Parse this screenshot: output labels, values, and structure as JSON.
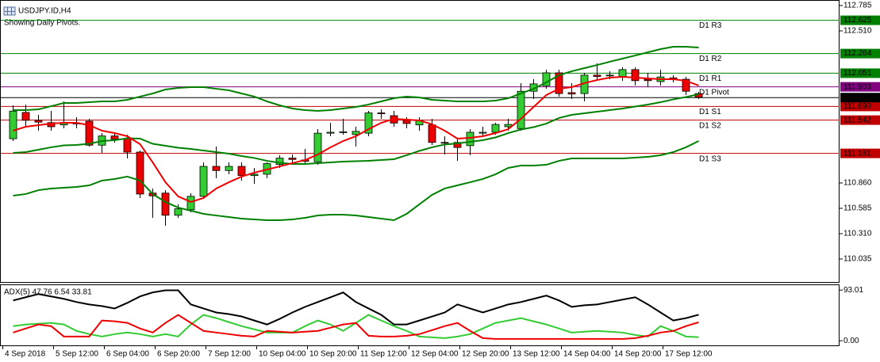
{
  "chart_data": {
    "type": "candlestick",
    "title": "USDJPY.ID,H4",
    "subtitle": "Showing Daily Pivots.",
    "categories": [
      "4 Sep 2018",
      null,
      null,
      null,
      "5 Sep 12:00",
      null,
      null,
      null,
      "6 Sep 04:00",
      null,
      null,
      null,
      "6 Sep 20:00",
      null,
      null,
      null,
      "7 Sep 12:00",
      null,
      null,
      null,
      "10 Sep 04:00",
      null,
      null,
      null,
      "10 Sep 20:00",
      null,
      null,
      null,
      "11 Sep 12:00",
      null,
      null,
      null,
      "12 Sep 04:00",
      null,
      null,
      null,
      "12 Sep 20:00",
      null,
      null,
      null,
      "13 Sep 12:00",
      null,
      null,
      null,
      "14 Sep 04:00",
      null,
      null,
      null,
      "14 Sep 20:00",
      null,
      null,
      null,
      "17 Sep 12:00",
      null,
      null
    ],
    "open": [
      111.34,
      111.625,
      111.54,
      111.515,
      111.49,
      111.51,
      111.53,
      111.27,
      111.37,
      111.34,
      111.195,
      110.75,
      110.75,
      110.51,
      110.57,
      110.715,
      111.04,
      110.995,
      111.04,
      110.94,
      110.955,
      111.06,
      111.13,
      111.11,
      111.09,
      111.4,
      111.41,
      111.385,
      111.4,
      111.62,
      111.59,
      111.54,
      111.49,
      111.49,
      111.3,
      111.3,
      111.265,
      111.4,
      111.41,
      111.47,
      111.45,
      111.855,
      111.915,
      112.055,
      111.84,
      111.83,
      112.03,
      112.025,
      112.015,
      112.09,
      111.985,
      111.96,
      112.0,
      111.985,
      111.83
    ],
    "high": [
      111.702,
      111.711,
      111.599,
      111.642,
      111.745,
      111.573,
      111.556,
      111.401,
      111.401,
      111.384,
      111.212,
      110.8,
      110.782,
      110.628,
      110.748,
      111.083,
      111.255,
      111.083,
      111.083,
      111.023,
      111.083,
      111.161,
      111.169,
      111.229,
      111.444,
      111.513,
      111.556,
      111.47,
      111.642,
      111.659,
      111.642,
      111.573,
      111.573,
      111.556,
      111.367,
      111.341,
      111.444,
      111.47,
      111.513,
      111.556,
      111.943,
      111.986,
      112.089,
      112.089,
      111.943,
      112.054,
      112.158,
      112.072,
      112.115,
      112.115,
      112.054,
      112.089,
      112.029,
      112.011,
      111.848
    ],
    "low": [
      111.315,
      111.47,
      111.427,
      111.427,
      111.453,
      111.453,
      111.255,
      111.186,
      111.298,
      111.126,
      110.697,
      110.482,
      110.396,
      110.482,
      110.542,
      110.697,
      110.911,
      110.954,
      110.886,
      110.851,
      110.911,
      111.023,
      111.075,
      111.057,
      111.057,
      111.367,
      111.384,
      111.255,
      111.367,
      111.556,
      111.47,
      111.453,
      111.427,
      111.272,
      111.169,
      111.1,
      111.161,
      111.367,
      111.384,
      111.427,
      111.427,
      111.771,
      111.882,
      111.797,
      111.771,
      111.745,
      111.986,
      111.986,
      111.968,
      111.917,
      111.9,
      111.917,
      111.951,
      111.814,
      111.771
    ],
    "close": [
      111.64,
      111.54,
      111.52,
      111.47,
      111.515,
      111.5,
      111.27,
      111.37,
      111.335,
      111.195,
      110.74,
      110.72,
      110.51,
      110.58,
      110.715,
      111.04,
      110.995,
      111.04,
      110.94,
      110.955,
      111.07,
      111.13,
      111.115,
      111.095,
      111.4,
      111.41,
      111.415,
      111.42,
      111.62,
      111.615,
      111.51,
      111.505,
      111.54,
      111.3,
      111.295,
      111.245,
      111.41,
      111.41,
      111.495,
      111.495,
      111.855,
      111.935,
      112.055,
      111.83,
      111.825,
      112.03,
      112.015,
      112.03,
      112.09,
      111.97,
      111.97,
      112.01,
      111.985,
      111.855,
      111.79
    ],
    "up_color": "#33cc33",
    "down_color": "#ee0000",
    "lines": [
      {
        "color": "#008000",
        "values": [
          111.65,
          111.65,
          111.659,
          111.693,
          111.728,
          111.728,
          111.736,
          111.745,
          111.745,
          111.762,
          111.797,
          111.831,
          111.874,
          111.891,
          111.9,
          111.9,
          111.882,
          111.865,
          111.831,
          111.797,
          111.745,
          111.702,
          111.668,
          111.65,
          111.642,
          111.65,
          111.668,
          111.685,
          111.711,
          111.745,
          111.779,
          111.797,
          111.788,
          111.762,
          111.754,
          111.745,
          111.745,
          111.745,
          111.754,
          111.779,
          111.831,
          111.882,
          111.951,
          112.029,
          112.072,
          112.106,
          112.14,
          112.175,
          112.209,
          112.243,
          112.278,
          112.312,
          112.338,
          112.338,
          112.329
        ]
      },
      {
        "color": "#008000",
        "values": [
          111.186,
          111.195,
          111.221,
          111.247,
          111.268,
          111.272,
          111.285,
          111.315,
          111.324,
          111.345,
          111.341,
          111.285,
          111.264,
          111.242,
          111.229,
          111.212,
          111.195,
          111.178,
          111.152,
          111.131,
          111.1,
          111.079,
          111.066,
          111.066,
          111.075,
          111.083,
          111.092,
          111.096,
          111.1,
          111.109,
          111.118,
          111.161,
          111.208,
          111.247,
          111.277,
          111.29,
          111.307,
          111.324,
          111.354,
          111.401,
          111.44,
          111.466,
          111.504,
          111.565,
          111.599,
          111.616,
          111.633,
          111.65,
          111.668,
          111.689,
          111.711,
          111.736,
          111.767,
          111.792,
          111.822
        ]
      },
      {
        "color": "#008000",
        "values": [
          110.722,
          110.74,
          110.782,
          110.8,
          110.808,
          110.817,
          110.834,
          110.886,
          110.903,
          110.929,
          110.886,
          110.74,
          110.654,
          110.593,
          110.559,
          110.525,
          110.507,
          110.49,
          110.473,
          110.464,
          110.456,
          110.456,
          110.464,
          110.482,
          110.507,
          110.516,
          110.516,
          110.507,
          110.49,
          110.473,
          110.456,
          110.525,
          110.628,
          110.731,
          110.8,
          110.834,
          110.868,
          110.903,
          110.954,
          111.023,
          111.049,
          111.049,
          111.057,
          111.1,
          111.126,
          111.126,
          111.126,
          111.126,
          111.126,
          111.135,
          111.143,
          111.161,
          111.195,
          111.247,
          111.315
        ]
      },
      {
        "color": "#ee0000",
        "values": [
          111.427,
          111.47,
          111.487,
          111.504,
          111.513,
          111.513,
          111.487,
          111.427,
          111.401,
          111.367,
          111.281,
          111.083,
          110.868,
          110.714,
          110.654,
          110.697,
          110.8,
          110.868,
          110.929,
          110.972,
          111.006,
          111.04,
          111.075,
          111.109,
          111.169,
          111.247,
          111.315,
          111.367,
          111.444,
          111.513,
          111.556,
          111.547,
          111.539,
          111.496,
          111.427,
          111.341,
          111.35,
          111.367,
          111.401,
          111.444,
          111.556,
          111.685,
          111.814,
          111.882,
          111.9,
          111.943,
          111.977,
          112.003,
          112.011,
          112.003,
          111.994,
          111.986,
          111.986,
          111.968,
          111.917
        ]
      }
    ],
    "ylim": [
      109.777,
      112.845
    ],
    "yticks": [
      112.785,
      {
        "value": 112.51,
        "label": "112.510"
      },
      {
        "value": 110.86,
        "label": "110.860"
      },
      110.585,
      {
        "value": 110.31,
        "label": "110.310"
      },
      110.035
    ],
    "levels": [
      {
        "name": "D1 R3",
        "value": 112.625,
        "label": "112.625",
        "color": "#008000"
      },
      {
        "name": "D1 R2",
        "value": 112.264,
        "label": "112.264",
        "color": "#008000"
      },
      {
        "name": "D1 R1",
        "value": 112.051,
        "label": "112.051",
        "color": "#008000"
      },
      {
        "name": "D1 Pivot",
        "value": 111.903,
        "label": "111.903",
        "color": "#800080"
      },
      {
        "name": "D1 S1",
        "value": 111.69,
        "label": "111.690",
        "color": "#c00000"
      },
      {
        "name": "D1 S2",
        "value": 111.542,
        "label": "111.542",
        "color": "#c00000"
      },
      {
        "name": "D1 S3",
        "value": 111.181,
        "label": "111.181",
        "color": "#c00000"
      }
    ],
    "current_price": {
      "value": 111.786,
      "label": "111.786",
      "color": "#000000"
    },
    "indicator": {
      "type": "line",
      "label": "ADX(5) 47.76 6.54 33.81",
      "ylim": [
        -10,
        102
      ],
      "yticks": [
        93.01,
        {
          "value": 0,
          "label": "0.00"
        }
      ],
      "series": [
        {
          "color": "#000000",
          "values": [
            73.9,
            79.8,
            85.7,
            81.3,
            76.9,
            71.0,
            66.6,
            63.6,
            59.2,
            69.5,
            81.3,
            88.7,
            92.5,
            92.5,
            66.6,
            59.2,
            51.8,
            48.9,
            44.5,
            37.1,
            29.8,
            40.1,
            51.8,
            62.2,
            71.0,
            79.8,
            88.7,
            71.0,
            59.2,
            47.4,
            29.8,
            29.8,
            37.1,
            44.5,
            51.8,
            66.6,
            59.2,
            51.8,
            59.2,
            66.6,
            71.0,
            76.9,
            82.8,
            73.9,
            62.2,
            65.1,
            66.6,
            71.0,
            75.4,
            79.8,
            66.6,
            51.8,
            37.1,
            41.5,
            47.76
          ]
        },
        {
          "color": "#33cc33",
          "values": [
            26.8,
            29.8,
            31.2,
            32.7,
            29.8,
            18.0,
            12.1,
            7.7,
            12.1,
            15.0,
            12.1,
            7.7,
            12.1,
            7.7,
            29.8,
            47.4,
            41.5,
            34.2,
            26.8,
            20.9,
            15.0,
            15.0,
            15.0,
            26.8,
            37.1,
            29.8,
            18.0,
            32.7,
            47.4,
            37.1,
            26.8,
            18.0,
            7.7,
            6.2,
            4.7,
            7.7,
            12.1,
            22.4,
            32.7,
            37.1,
            41.5,
            35.6,
            29.8,
            22.4,
            15.0,
            16.5,
            18.0,
            16.5,
            15.0,
            10.6,
            7.7,
            26.8,
            18.0,
            7.7,
            6.54
          ]
        },
        {
          "color": "#ee0000",
          "values": [
            15.0,
            22.4,
            29.8,
            26.8,
            7.7,
            7.7,
            7.7,
            37.1,
            35.6,
            32.7,
            22.4,
            15.0,
            32.7,
            47.4,
            32.7,
            18.0,
            15.0,
            12.1,
            9.1,
            7.7,
            18.0,
            16.5,
            15.0,
            16.5,
            18.0,
            23.9,
            29.8,
            32.7,
            9.1,
            7.7,
            7.7,
            9.1,
            12.1,
            19.4,
            26.8,
            32.7,
            18.0,
            4.7,
            3.2,
            3.2,
            3.2,
            3.2,
            3.2,
            3.2,
            3.2,
            3.2,
            3.2,
            3.2,
            3.2,
            4.7,
            9.1,
            15.0,
            18.0,
            26.8,
            33.81
          ]
        }
      ]
    }
  }
}
